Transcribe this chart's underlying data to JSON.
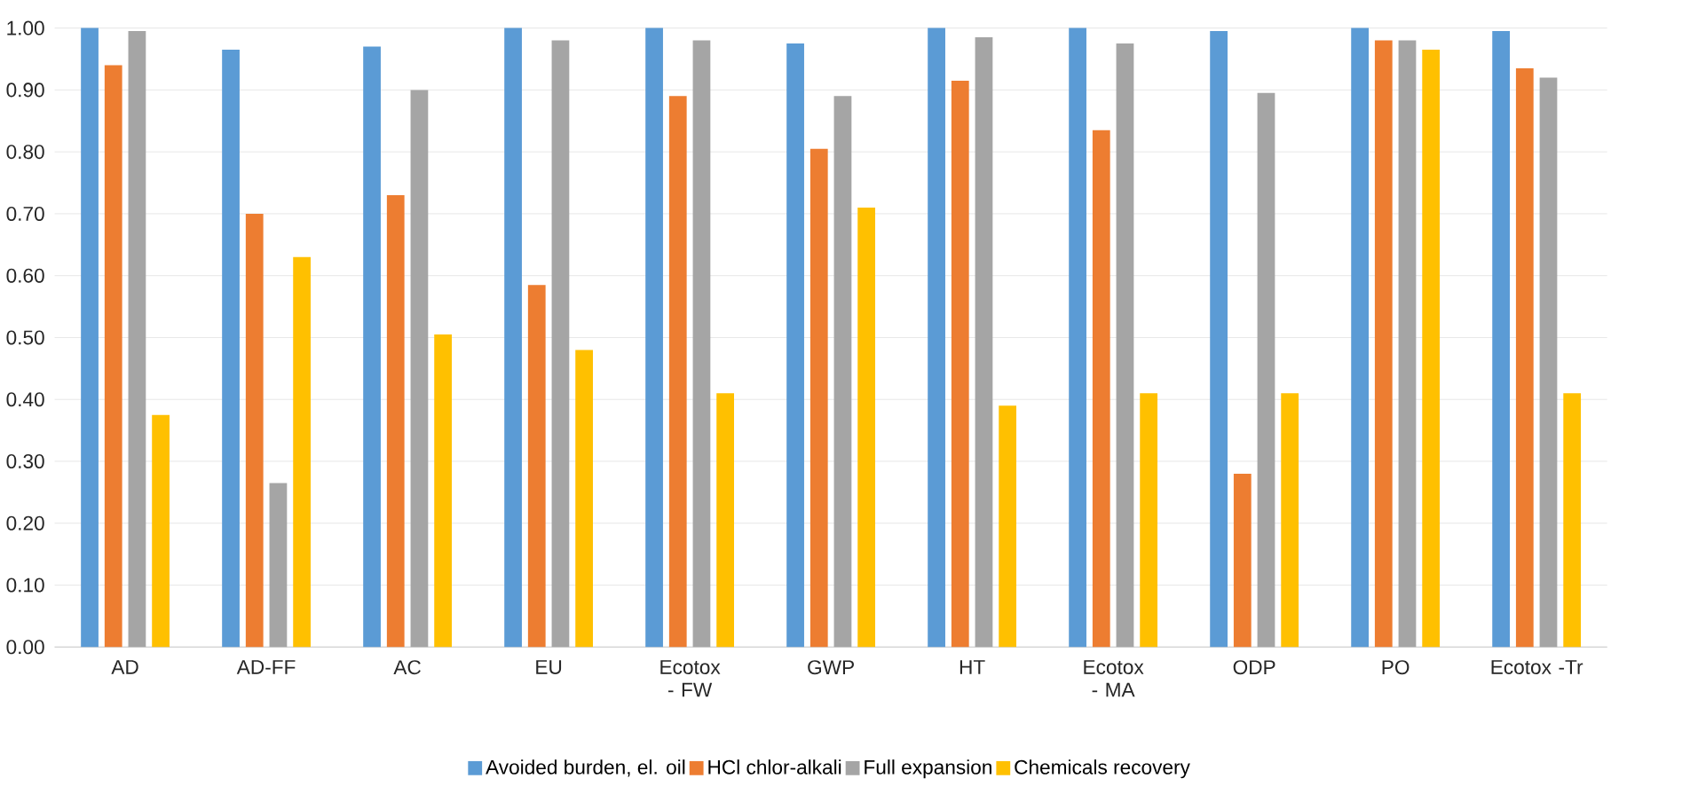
{
  "chart_data": {
    "type": "bar",
    "categories": [
      "AD",
      "AD-FF",
      "AC",
      "EU",
      "Ecotox - FW",
      "GWP",
      "HT",
      "Ecotox - MA",
      "ODP",
      "PO",
      "Ecotox -Tr"
    ],
    "series": [
      {
        "name": "Avoided burden, el. oil",
        "color": "#5b9bd5",
        "values": [
          1.0,
          0.965,
          0.97,
          1.0,
          1.0,
          0.975,
          1.0,
          1.0,
          0.995,
          1.0,
          0.995
        ]
      },
      {
        "name": "HCl chlor-alkali",
        "color": "#ed7d31",
        "values": [
          0.94,
          0.7,
          0.73,
          0.585,
          0.89,
          0.805,
          0.915,
          0.835,
          0.28,
          0.98,
          0.935
        ]
      },
      {
        "name": "Full expansion",
        "color": "#a5a5a5",
        "values": [
          0.995,
          0.265,
          0.9,
          0.98,
          0.98,
          0.89,
          0.985,
          0.975,
          0.895,
          0.98,
          0.92
        ]
      },
      {
        "name": "Chemicals recovery",
        "color": "#ffc000",
        "values": [
          0.375,
          0.63,
          0.505,
          0.48,
          0.41,
          0.71,
          0.39,
          0.41,
          0.41,
          0.965,
          0.41
        ]
      }
    ],
    "ylim": [
      0,
      1
    ],
    "yticks": [
      {
        "value": 0,
        "label": "0.00"
      },
      {
        "value": 0.1,
        "label": "0.10"
      },
      {
        "value": 0.2,
        "label": "0.20"
      },
      {
        "value": 0.3,
        "label": "0.30"
      },
      {
        "value": 0.4,
        "label": "0.40"
      },
      {
        "value": 0.5,
        "label": "0.50"
      },
      {
        "value": 0.6,
        "label": "0.60"
      },
      {
        "value": 0.7,
        "label": "0.70"
      },
      {
        "value": 0.8,
        "label": "0.80"
      },
      {
        "value": 0.9,
        "label": "0.90"
      },
      {
        "value": 1.0,
        "label": "1.00"
      }
    ],
    "grid": "y",
    "legend": "bottom"
  }
}
